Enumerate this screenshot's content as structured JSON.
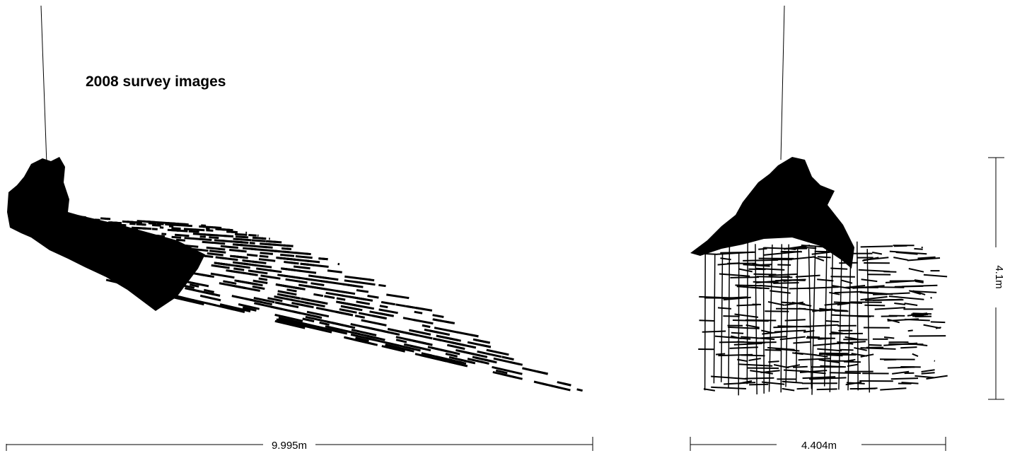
{
  "title": "2008 survey images",
  "dimensions": {
    "side_length": "9.995m",
    "end_width": "4.404m",
    "end_height": "4.1m"
  },
  "colors": {
    "ink": "#000000",
    "background": "#ffffff"
  }
}
